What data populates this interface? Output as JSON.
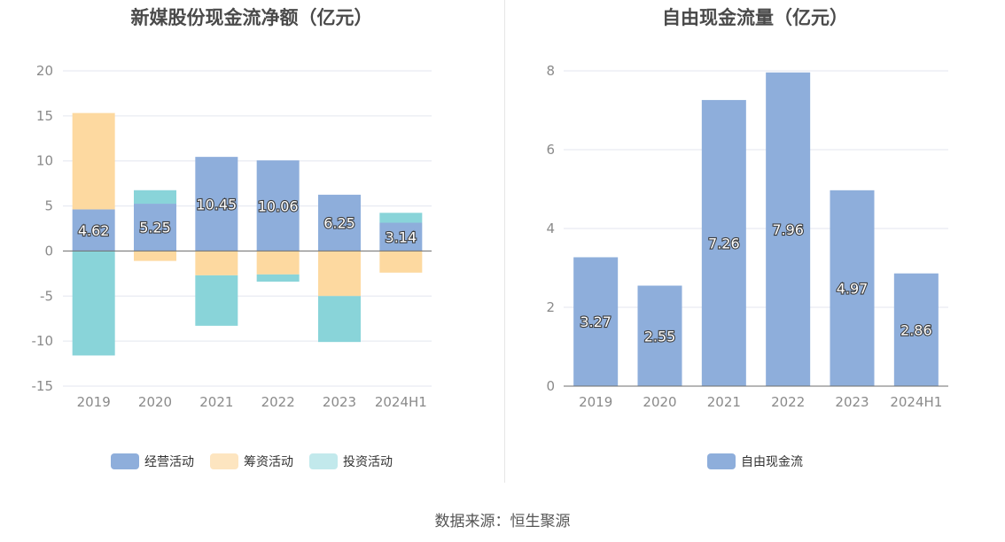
{
  "source_text": "数据来源：恒生聚源",
  "chart_data": [
    {
      "type": "bar",
      "stacked": true,
      "title": "新媒股份现金流净额（亿元）",
      "categories": [
        "2019",
        "2020",
        "2021",
        "2022",
        "2023",
        "2024H1"
      ],
      "series": [
        {
          "name": "经营活动",
          "color": "#8eaedb",
          "values": [
            4.62,
            5.25,
            10.45,
            10.06,
            6.25,
            3.14
          ]
        },
        {
          "name": "筹资活动",
          "color": "#fdd9a0",
          "values": [
            10.7,
            -1.1,
            -2.7,
            -2.6,
            -5.0,
            -2.4
          ]
        },
        {
          "name": "投资活动",
          "color": "#89d4d9",
          "values": [
            -11.6,
            1.5,
            -5.6,
            -0.8,
            -5.1,
            1.1
          ]
        }
      ],
      "legend_colors": [
        "#8eaedb",
        "#fde5c0",
        "#c2e9ec"
      ],
      "data_labels": [
        "4.62",
        "5.25",
        "10.45",
        "10.06",
        "6.25",
        "3.14"
      ],
      "ylim": [
        -15,
        20
      ],
      "yticks": [
        20,
        15,
        10,
        5,
        0,
        -5,
        -10,
        -15
      ],
      "grid": true,
      "legend_position": "bottom"
    },
    {
      "type": "bar",
      "title": "自由现金流量（亿元）",
      "categories": [
        "2019",
        "2020",
        "2021",
        "2022",
        "2023",
        "2024H1"
      ],
      "series": [
        {
          "name": "自由现金流",
          "color": "#8eaedb",
          "values": [
            3.27,
            2.55,
            7.26,
            7.96,
            4.97,
            2.86
          ]
        }
      ],
      "data_labels": [
        "3.27",
        "2.55",
        "7.26",
        "7.96",
        "4.97",
        "2.86"
      ],
      "ylim": [
        0,
        8
      ],
      "yticks": [
        8,
        6,
        4,
        2,
        0
      ],
      "grid": true,
      "legend_position": "bottom"
    }
  ]
}
